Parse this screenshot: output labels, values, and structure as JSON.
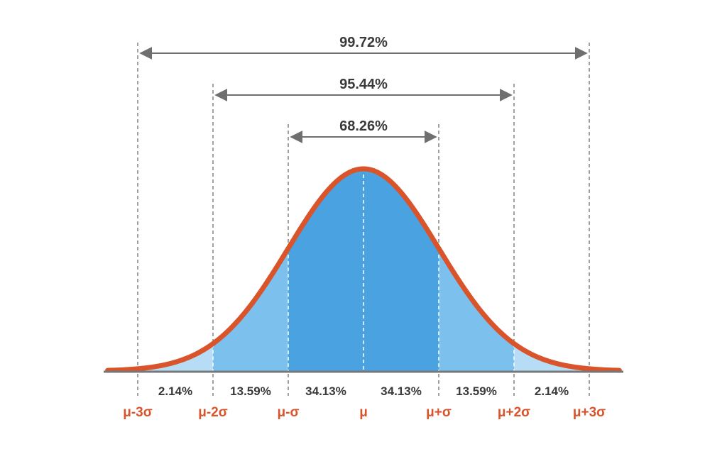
{
  "chart_data": {
    "type": "area",
    "description_free": true,
    "x_ticks": [
      "μ-3σ",
      "μ-2σ",
      "μ-σ",
      "μ",
      "μ+σ",
      "μ+2σ",
      "μ+3σ"
    ],
    "x_tick_values": [
      -3,
      -2,
      -1,
      0,
      1,
      2,
      3
    ],
    "x_range": [
      -3.4,
      3.4
    ],
    "segment_percentages": [
      {
        "from": -3,
        "to": -2,
        "label": "2.14%"
      },
      {
        "from": -2,
        "to": -1,
        "label": "13.59%"
      },
      {
        "from": -1,
        "to": 0,
        "label": "34.13%"
      },
      {
        "from": 0,
        "to": 1,
        "label": "34.13%"
      },
      {
        "from": 1,
        "to": 2,
        "label": "13.59%"
      },
      {
        "from": 2,
        "to": 3,
        "label": "2.14%"
      }
    ],
    "ranges": [
      {
        "from": -1,
        "to": 1,
        "label": "68.26%"
      },
      {
        "from": -2,
        "to": 2,
        "label": "95.44%"
      },
      {
        "from": -3,
        "to": 3,
        "label": "99.72%"
      }
    ],
    "grid": false,
    "legend": "none"
  },
  "colors": {
    "curve": "#d9532b",
    "fill_inner": "#4aa3e0",
    "fill_middle": "#7cc0ee",
    "fill_outer": "#b7dcf5",
    "axis": "#777777",
    "guide": "#6f6f6f",
    "tick_text": "#d9532b",
    "label_text": "#3a3a3a"
  }
}
